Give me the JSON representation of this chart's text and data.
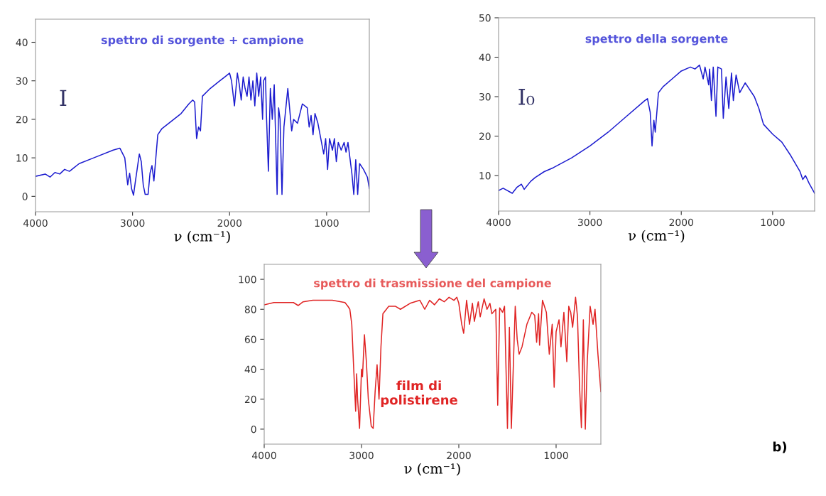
{
  "chart_data": [
    {
      "type": "line",
      "title": "spettro di sorgente + campione",
      "xlabel": "ν (cm⁻¹)",
      "xlim": [
        4000,
        560
      ],
      "xticks": [
        4000,
        3000,
        2000,
        1000
      ],
      "ylim": [
        -4,
        46
      ],
      "yticks": [
        0,
        10,
        20,
        30,
        40
      ],
      "grid": false,
      "legend": false,
      "marker": "none",
      "line_style": "solid",
      "annotations": [
        "I"
      ],
      "series": [
        {
          "color": "#1c1ccf",
          "x": [
            4000,
            3900,
            3850,
            3800,
            3750,
            3700,
            3650,
            3600,
            3550,
            3400,
            3200,
            3130,
            3080,
            3050,
            3030,
            3010,
            2990,
            2970,
            2950,
            2930,
            2910,
            2890,
            2870,
            2840,
            2820,
            2800,
            2780,
            2760,
            2740,
            2700,
            2600,
            2500,
            2420,
            2380,
            2360,
            2340,
            2320,
            2300,
            2280,
            2200,
            2100,
            2050,
            2000,
            1980,
            1950,
            1920,
            1900,
            1880,
            1860,
            1840,
            1820,
            1800,
            1780,
            1760,
            1740,
            1720,
            1700,
            1680,
            1660,
            1650,
            1630,
            1620,
            1600,
            1580,
            1560,
            1540,
            1510,
            1495,
            1480,
            1460,
            1440,
            1400,
            1360,
            1340,
            1300,
            1250,
            1200,
            1180,
            1160,
            1140,
            1120,
            1090,
            1060,
            1030,
            1010,
            990,
            970,
            940,
            920,
            900,
            880,
            850,
            820,
            800,
            780,
            760,
            740,
            720,
            700,
            680,
            660,
            620,
            580,
            560
          ],
          "values": [
            5.2,
            5.8,
            5.0,
            6.2,
            5.8,
            7.0,
            6.5,
            7.5,
            8.5,
            10.0,
            12.0,
            12.5,
            10,
            3,
            6,
            2,
            0.3,
            4,
            7.5,
            11,
            9,
            3,
            0.5,
            0.5,
            6,
            8,
            4,
            10,
            16,
            17.5,
            19.5,
            21.5,
            24,
            25,
            24.5,
            15,
            18,
            17,
            26,
            28,
            30,
            31,
            32,
            30,
            23.5,
            32,
            29,
            25,
            31,
            28,
            26,
            31,
            25,
            30,
            23.5,
            32,
            26,
            31,
            20,
            30,
            31,
            21,
            6.5,
            28,
            20,
            29,
            0.5,
            23,
            20,
            0.5,
            18,
            28,
            17,
            20,
            19,
            24,
            23,
            18,
            21,
            16,
            21.5,
            19,
            15,
            11,
            15,
            7,
            15,
            12,
            15,
            9,
            14,
            12,
            14,
            11.5,
            14,
            10,
            6,
            0.5,
            9.5,
            0.5,
            8.5,
            7,
            5,
            2
          ]
        }
      ]
    },
    {
      "type": "line",
      "title": "spettro della sorgente",
      "xlabel": "ν (cm⁻¹)",
      "xlim": [
        4000,
        540
      ],
      "xticks": [
        4000,
        3000,
        2000,
        1000
      ],
      "ylim": [
        1,
        50
      ],
      "yticks": [
        10,
        20,
        30,
        40,
        50
      ],
      "grid": false,
      "legend": false,
      "marker": "none",
      "line_style": "solid",
      "annotations": [
        "I₀"
      ],
      "series": [
        {
          "color": "#1c1ccf",
          "x": [
            4000,
            3950,
            3850,
            3800,
            3750,
            3720,
            3650,
            3600,
            3500,
            3400,
            3200,
            3000,
            2800,
            2600,
            2400,
            2370,
            2340,
            2320,
            2300,
            2285,
            2250,
            2200,
            2100,
            2000,
            1900,
            1850,
            1800,
            1760,
            1740,
            1700,
            1690,
            1670,
            1650,
            1620,
            1600,
            1560,
            1540,
            1510,
            1480,
            1450,
            1430,
            1400,
            1360,
            1300,
            1200,
            1150,
            1100,
            1000,
            900,
            800,
            700,
            670,
            640,
            600,
            540
          ],
          "values": [
            6.2,
            6.8,
            5.5,
            7.0,
            7.8,
            6.5,
            8.5,
            9.5,
            11,
            12,
            14.5,
            17.5,
            21,
            25,
            29,
            29.5,
            26,
            17.5,
            24,
            21,
            31,
            32.5,
            34.5,
            36.5,
            37.5,
            37,
            38,
            34.5,
            37.5,
            33,
            37,
            29,
            37.5,
            25,
            37.5,
            37,
            24.5,
            35,
            27,
            36,
            29,
            35.5,
            31,
            33.5,
            30,
            27,
            23,
            20.5,
            18.5,
            15,
            11,
            9,
            10,
            8,
            5.5
          ]
        }
      ]
    },
    {
      "type": "line",
      "title": "spettro di trasmissione del campione",
      "xlabel": "ν (cm⁻¹)",
      "xlim": [
        4000,
        540
      ],
      "xticks": [
        4000,
        3000,
        2000,
        1000
      ],
      "ylim": [
        -10,
        110
      ],
      "yticks": [
        0,
        20,
        40,
        60,
        80,
        100
      ],
      "grid": false,
      "legend": false,
      "marker": "none",
      "line_style": "solid",
      "annotations": [
        "film di\npolistirene",
        "b)"
      ],
      "series": [
        {
          "color": "#e02424",
          "x": [
            4000,
            3900,
            3700,
            3650,
            3600,
            3500,
            3300,
            3170,
            3140,
            3120,
            3100,
            3080,
            3060,
            3050,
            3040,
            3020,
            3000,
            2990,
            2970,
            2950,
            2930,
            2900,
            2880,
            2860,
            2840,
            2820,
            2800,
            2780,
            2720,
            2650,
            2600,
            2500,
            2400,
            2350,
            2300,
            2250,
            2200,
            2150,
            2100,
            2050,
            2020,
            2000,
            1970,
            1950,
            1920,
            1890,
            1860,
            1840,
            1800,
            1780,
            1740,
            1710,
            1680,
            1660,
            1620,
            1600,
            1580,
            1550,
            1530,
            1500,
            1480,
            1460,
            1420,
            1400,
            1380,
            1350,
            1300,
            1250,
            1220,
            1200,
            1180,
            1170,
            1140,
            1100,
            1070,
            1040,
            1020,
            1000,
            970,
            950,
            920,
            890,
            870,
            850,
            830,
            800,
            780,
            760,
            740,
            720,
            700,
            680,
            650,
            620,
            600,
            570,
            540
          ],
          "values": [
            83,
            84.5,
            84.5,
            82.5,
            85,
            86,
            86,
            84.5,
            82,
            80,
            70,
            40,
            12,
            37,
            20,
            0.5,
            40,
            35,
            63,
            45,
            20,
            2,
            0.5,
            25,
            43,
            20,
            55,
            77,
            82,
            82,
            80,
            84,
            86,
            80,
            86,
            83,
            87,
            85,
            88,
            86,
            88,
            84,
            70,
            64,
            86,
            70,
            84,
            72,
            85,
            75,
            87,
            80,
            84,
            77,
            80,
            16,
            81,
            78,
            82,
            0.5,
            68,
            0.5,
            82,
            60,
            50,
            55,
            70,
            78,
            76,
            58,
            77,
            56,
            86,
            78,
            50,
            70,
            28,
            65,
            73,
            55,
            78,
            45,
            82,
            78,
            68,
            88,
            75,
            30,
            1,
            73,
            0,
            45,
            82,
            70,
            80,
            50,
            25
          ]
        }
      ]
    }
  ]
}
